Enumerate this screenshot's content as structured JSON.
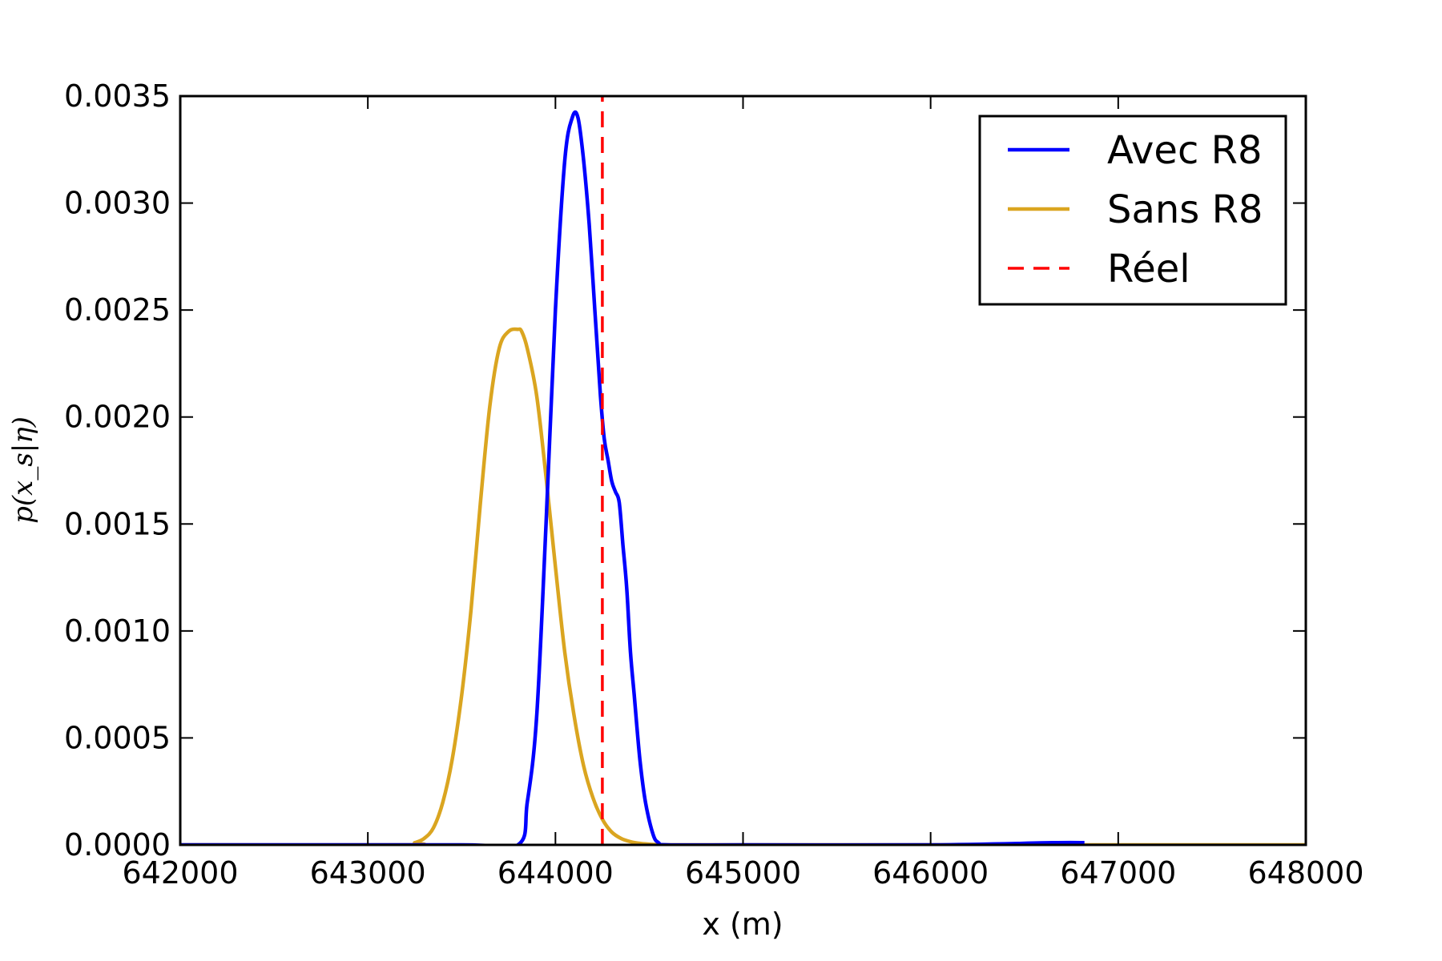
{
  "chart_data": {
    "type": "line",
    "title": "",
    "xlabel": "x (m)",
    "ylabel": "p(x_s|η)",
    "xlim": [
      642000,
      648000
    ],
    "ylim": [
      0,
      0.0035
    ],
    "xticks": [
      "642000",
      "643000",
      "644000",
      "645000",
      "646000",
      "647000",
      "648000"
    ],
    "yticks": [
      "0.0000",
      "0.0005",
      "0.0010",
      "0.0015",
      "0.0020",
      "0.0025",
      "0.0030",
      "0.0035"
    ],
    "grid": false,
    "legend_position": "top-right",
    "series": [
      {
        "name": "Avec R8",
        "color": "#0000ff",
        "style": "solid",
        "x": [
          642000,
          643500,
          643800,
          643850,
          643900,
          643950,
          644000,
          644050,
          644090,
          644120,
          644150,
          644180,
          644210,
          644240,
          644260,
          644280,
          644300,
          644320,
          644340,
          644360,
          644380,
          644400,
          644420,
          644450,
          644480,
          644520,
          644550,
          644600,
          645000,
          646000,
          646650,
          646820
        ],
        "y": [
          0.0,
          0.0,
          0.0,
          0.0002,
          0.0006,
          0.0015,
          0.0025,
          0.0032,
          0.0034,
          0.0034,
          0.0032,
          0.0029,
          0.0025,
          0.0021,
          0.0019,
          0.0018,
          0.0017,
          0.00165,
          0.0016,
          0.0014,
          0.0012,
          0.0009,
          0.0007,
          0.0004,
          0.0002,
          5e-05,
          1e-05,
          0.0,
          0.0,
          0.0,
          1e-05,
          1e-05
        ]
      },
      {
        "name": "Sans R8",
        "color": "#daa520",
        "style": "solid",
        "x": [
          642000,
          643200,
          643250,
          643300,
          643350,
          643400,
          643450,
          643500,
          643550,
          643600,
          643650,
          643700,
          643750,
          643800,
          643820,
          643850,
          643900,
          643950,
          644000,
          644050,
          644100,
          644150,
          644200,
          644250,
          644300,
          644350,
          644400,
          644450,
          644500,
          644550,
          644600,
          645000,
          648000
        ],
        "y": [
          0.0,
          0.0,
          1e-05,
          3e-05,
          8e-05,
          0.0002,
          0.0004,
          0.0007,
          0.0011,
          0.0016,
          0.00205,
          0.00232,
          0.0024,
          0.00241,
          0.0024,
          0.00232,
          0.0021,
          0.00172,
          0.0013,
          0.0009,
          0.0006,
          0.00037,
          0.00022,
          0.00012,
          6e-05,
          3e-05,
          1.5e-05,
          7e-06,
          3e-06,
          1e-06,
          0.0,
          0.0,
          0.0
        ]
      },
      {
        "name": "Réel",
        "color": "#ff0000",
        "style": "dashed",
        "x": [
          644250,
          644250
        ],
        "y": [
          0,
          0.0035
        ]
      }
    ]
  }
}
